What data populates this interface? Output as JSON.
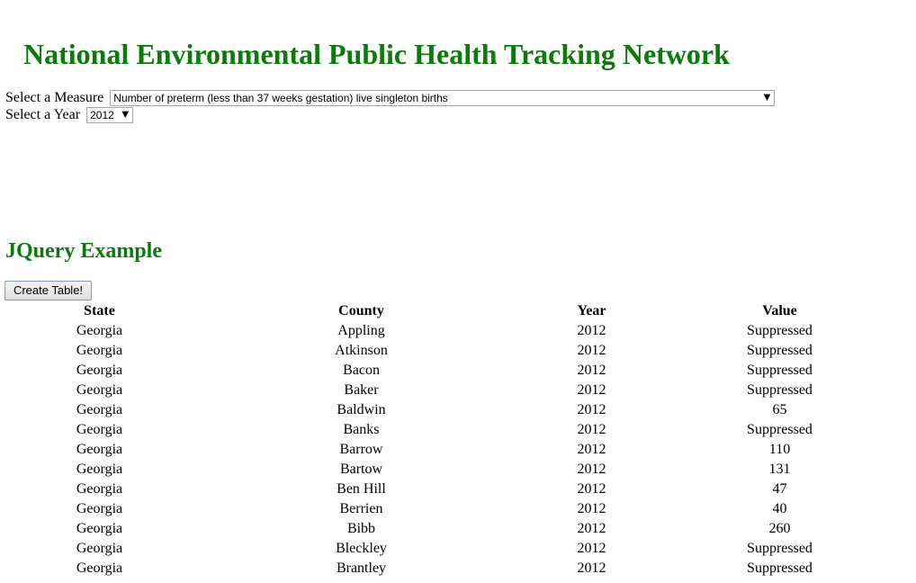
{
  "header": {
    "title": "National Environmental Public Health Tracking Network"
  },
  "controls": {
    "measure_label": "Select a Measure",
    "measure_value": "Number of preterm (less than 37 weeks gestation) live singleton births",
    "year_label": "Select a Year",
    "year_value": "2012"
  },
  "section": {
    "title": "JQuery Example",
    "button_label": "Create Table!"
  },
  "table": {
    "columns": [
      "State",
      "County",
      "Year",
      "Value"
    ],
    "rows": [
      [
        "Georgia",
        "Appling",
        "2012",
        "Suppressed"
      ],
      [
        "Georgia",
        "Atkinson",
        "2012",
        "Suppressed"
      ],
      [
        "Georgia",
        "Bacon",
        "2012",
        "Suppressed"
      ],
      [
        "Georgia",
        "Baker",
        "2012",
        "Suppressed"
      ],
      [
        "Georgia",
        "Baldwin",
        "2012",
        "65"
      ],
      [
        "Georgia",
        "Banks",
        "2012",
        "Suppressed"
      ],
      [
        "Georgia",
        "Barrow",
        "2012",
        "110"
      ],
      [
        "Georgia",
        "Bartow",
        "2012",
        "131"
      ],
      [
        "Georgia",
        "Ben Hill",
        "2012",
        "47"
      ],
      [
        "Georgia",
        "Berrien",
        "2012",
        "40"
      ],
      [
        "Georgia",
        "Bibb",
        "2012",
        "260"
      ],
      [
        "Georgia",
        "Bleckley",
        "2012",
        "Suppressed"
      ],
      [
        "Georgia",
        "Brantley",
        "2012",
        "Suppressed"
      ]
    ]
  }
}
